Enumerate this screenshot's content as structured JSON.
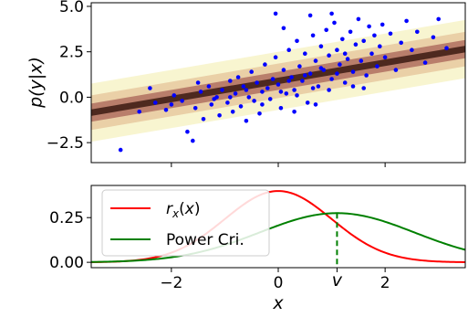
{
  "chart_data": [
    {
      "type": "scatter",
      "ylabel": "p(y|x)",
      "xlim": [
        -3.5,
        3.5
      ],
      "ylim": [
        -3.6,
        5.2
      ],
      "yticks": [
        {
          "v": -2.5,
          "label": "−2.5"
        },
        {
          "v": 0.0,
          "label": "0.0"
        },
        {
          "v": 2.5,
          "label": "2.5"
        },
        {
          "v": 5.0,
          "label": "5.0"
        }
      ],
      "mean_line": {
        "slope": 0.5,
        "intercept": 0.9
      },
      "scatter_color": "#0000ff",
      "density_colors": [
        "#ffffff",
        "#f7f3c8",
        "#e8c9a0",
        "#b07060",
        "#3b1a12"
      ],
      "points": [
        [
          -2.95,
          -2.9
        ],
        [
          -2.6,
          -0.8
        ],
        [
          -2.3,
          -0.3
        ],
        [
          -2.1,
          -0.7
        ],
        [
          -1.95,
          0.1
        ],
        [
          -1.8,
          -0.2
        ],
        [
          -1.7,
          -1.9
        ],
        [
          -1.6,
          -2.4
        ],
        [
          -1.55,
          -0.6
        ],
        [
          -1.45,
          0.3
        ],
        [
          -1.4,
          -1.2
        ],
        [
          -1.3,
          0.6
        ],
        [
          -1.25,
          -0.4
        ],
        [
          -1.15,
          0.0
        ],
        [
          -1.1,
          -1.0
        ],
        [
          -1.05,
          0.4
        ],
        [
          -0.95,
          -0.3
        ],
        [
          -0.9,
          0.9
        ],
        [
          -0.85,
          -0.8
        ],
        [
          -0.8,
          0.2
        ],
        [
          -0.75,
          1.1
        ],
        [
          -0.7,
          -0.5
        ],
        [
          -0.65,
          0.6
        ],
        [
          -0.6,
          -1.3
        ],
        [
          -0.55,
          0.0
        ],
        [
          -0.5,
          1.4
        ],
        [
          -0.45,
          -0.2
        ],
        [
          -0.4,
          0.8
        ],
        [
          -0.35,
          -0.9
        ],
        [
          -0.3,
          0.3
        ],
        [
          -0.25,
          1.8
        ],
        [
          -0.2,
          0.5
        ],
        [
          -0.15,
          -0.1
        ],
        [
          -0.1,
          1.0
        ],
        [
          -0.05,
          2.2
        ],
        [
          0.0,
          0.7
        ],
        [
          0.05,
          -0.6
        ],
        [
          0.1,
          1.5
        ],
        [
          0.15,
          0.2
        ],
        [
          0.2,
          2.6
        ],
        [
          0.25,
          1.1
        ],
        [
          0.3,
          0.4
        ],
        [
          0.35,
          3.1
        ],
        [
          0.4,
          1.7
        ],
        [
          0.45,
          0.9
        ],
        [
          0.5,
          2.4
        ],
        [
          0.55,
          -0.3
        ],
        [
          0.6,
          1.3
        ],
        [
          0.65,
          3.4
        ],
        [
          0.7,
          2.0
        ],
        [
          0.75,
          0.6
        ],
        [
          0.8,
          2.8
        ],
        [
          0.85,
          1.5
        ],
        [
          0.9,
          3.7
        ],
        [
          0.95,
          2.3
        ],
        [
          1.0,
          1.0
        ],
        [
          1.05,
          4.1
        ],
        [
          1.1,
          2.6
        ],
        [
          1.15,
          1.8
        ],
        [
          1.2,
          3.2
        ],
        [
          1.25,
          0.8
        ],
        [
          1.3,
          2.1
        ],
        [
          1.35,
          3.6
        ],
        [
          1.4,
          1.4
        ],
        [
          1.45,
          2.9
        ],
        [
          1.5,
          4.3
        ],
        [
          1.55,
          2.0
        ],
        [
          1.6,
          3.1
        ],
        [
          1.65,
          1.2
        ],
        [
          1.7,
          3.9
        ],
        [
          1.75,
          2.4
        ],
        [
          1.8,
          3.4
        ],
        [
          1.85,
          1.7
        ],
        [
          1.9,
          2.8
        ],
        [
          1.95,
          4.0
        ],
        [
          2.0,
          2.2
        ],
        [
          2.1,
          3.5
        ],
        [
          2.2,
          1.5
        ],
        [
          2.3,
          3.0
        ],
        [
          2.4,
          4.2
        ],
        [
          2.5,
          2.6
        ],
        [
          2.6,
          3.6
        ],
        [
          2.75,
          1.9
        ],
        [
          2.9,
          3.3
        ],
        [
          3.0,
          4.3
        ],
        [
          3.15,
          2.7
        ],
        [
          -1.2,
          -0.1
        ],
        [
          -0.9,
          0.0
        ],
        [
          -0.6,
          0.4
        ],
        [
          -0.3,
          -0.4
        ],
        [
          0.05,
          0.3
        ],
        [
          0.2,
          0.9
        ],
        [
          0.35,
          0.1
        ],
        [
          0.5,
          1.2
        ],
        [
          0.65,
          0.5
        ],
        [
          0.8,
          1.6
        ],
        [
          0.95,
          0.4
        ],
        [
          1.1,
          1.3
        ],
        [
          1.25,
          2.4
        ],
        [
          1.4,
          0.6
        ],
        [
          -0.05,
          4.6
        ],
        [
          0.1,
          3.8
        ],
        [
          0.6,
          4.5
        ],
        [
          1.0,
          4.6
        ],
        [
          -1.5,
          0.8
        ],
        [
          -2.0,
          -0.4
        ],
        [
          -2.4,
          0.5
        ],
        [
          0.3,
          -0.8
        ],
        [
          0.7,
          -0.4
        ],
        [
          1.6,
          0.5
        ]
      ]
    },
    {
      "type": "line",
      "xlabel": "x",
      "xlim": [
        -3.5,
        3.5
      ],
      "ylim": [
        -0.03,
        0.43
      ],
      "xticks": [
        {
          "v": -2,
          "label": "−2"
        },
        {
          "v": 0,
          "label": "0"
        },
        {
          "v": 2,
          "label": "2"
        }
      ],
      "yticks": [
        {
          "v": 0.0,
          "label": "0.00"
        },
        {
          "v": 0.25,
          "label": "0.25"
        }
      ],
      "series": [
        {
          "name": "r_x(x)",
          "color": "#ff0000",
          "dist": {
            "mu": 0.0,
            "sigma": 1.0
          }
        },
        {
          "name": "Power Cri.",
          "color": "#008000",
          "dist": {
            "mu": 1.1,
            "sigma": 1.45
          }
        }
      ],
      "vline": {
        "x": 1.1,
        "label": "v",
        "color": "#008000"
      }
    }
  ]
}
